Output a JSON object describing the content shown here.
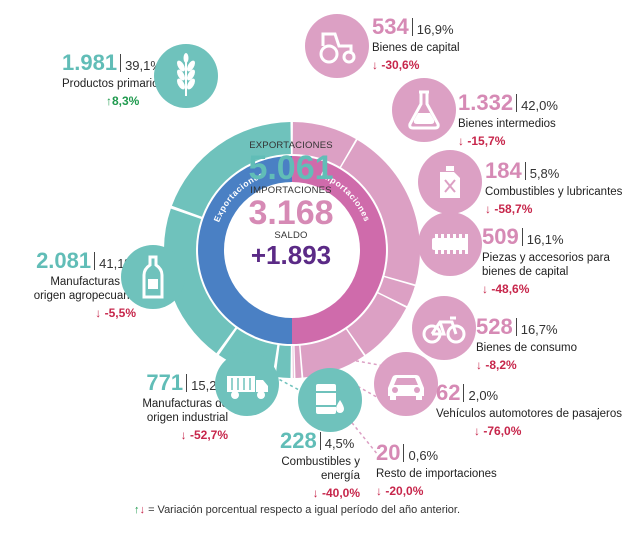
{
  "chart_data": {
    "type": "pie",
    "center": {
      "exports_label": "EXPORTACIONES",
      "exports_value": "5.061",
      "imports_label": "IMPORTACIONES",
      "imports_value": "3.168",
      "balance_label": "SALDO",
      "balance_value": "+1.893"
    },
    "ring_labels": {
      "exports": "Exportaciones",
      "imports": "Importaciones"
    },
    "exports": [
      {
        "name": "Productos primarios",
        "value": 1981,
        "value_label": "1.981",
        "share": "39,1%",
        "change": "8,3%",
        "direction": "up",
        "icon": "wheat-icon"
      },
      {
        "name": "Manufacturas de origen agropecuario",
        "value": 2081,
        "value_label": "2.081",
        "share": "41,1%",
        "change": "-5,5%",
        "direction": "down",
        "icon": "bottle-icon"
      },
      {
        "name": "Manufacturas de origen industrial",
        "value": 771,
        "value_label": "771",
        "share": "15,2%",
        "change": "-52,7%",
        "direction": "down",
        "icon": "truck-icon"
      },
      {
        "name": "Combustibles y energía",
        "value": 228,
        "value_label": "228",
        "share": "4,5%",
        "change": "-40,0%",
        "direction": "down",
        "icon": "oil-barrel-icon"
      }
    ],
    "imports": [
      {
        "name": "Bienes de capital",
        "value": 534,
        "value_label": "534",
        "share": "16,9%",
        "change": "-30,6%",
        "direction": "down",
        "icon": "tractor-icon"
      },
      {
        "name": "Bienes intermedios",
        "value": 1332,
        "value_label": "1.332",
        "share": "42,0%",
        "change": "-15,7%",
        "direction": "down",
        "icon": "flask-icon"
      },
      {
        "name": "Combustibles y lubricantes",
        "value": 184,
        "value_label": "184",
        "share": "5,8%",
        "change": "-58,7%",
        "direction": "down",
        "icon": "fuel-can-icon"
      },
      {
        "name": "Piezas y accesorios para bienes de capital",
        "value": 509,
        "value_label": "509",
        "share": "16,1%",
        "change": "-48,6%",
        "direction": "down",
        "icon": "gear-part-icon"
      },
      {
        "name": "Bienes de consumo",
        "value": 528,
        "value_label": "528",
        "share": "16,7%",
        "change": "-8,2%",
        "direction": "down",
        "icon": "bicycle-icon"
      },
      {
        "name": "Vehículos automotores de pasajeros",
        "value": 62,
        "value_label": "62",
        "share": "2,0%",
        "change": "-76,0%",
        "direction": "down",
        "icon": "car-icon"
      },
      {
        "name": "Resto de importaciones",
        "value": 20,
        "value_label": "20",
        "share": "0,6%",
        "change": "-20,0%",
        "direction": "down",
        "icon": ""
      }
    ],
    "footer": "= Variación porcentual respecto a igual período del año anterior.",
    "colors": {
      "exports_outer": "#6fc2bc",
      "exports_inner": "#4a80c4",
      "imports_outer": "#dca0c4",
      "imports_inner": "#cf6bab",
      "balance": "#5b2a86",
      "up": "#1f9a4e",
      "down": "#c7264b"
    }
  }
}
